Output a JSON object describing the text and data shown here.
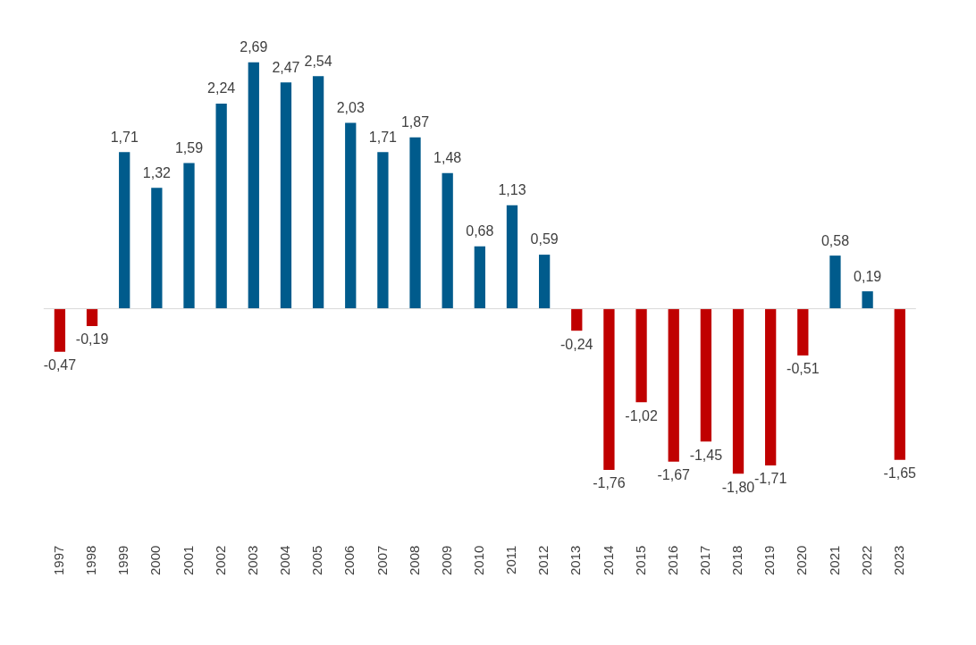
{
  "chart_data": {
    "type": "bar",
    "categories": [
      "1997",
      "1998",
      "1999",
      "2000",
      "2001",
      "2002",
      "2003",
      "2004",
      "2005",
      "2006",
      "2007",
      "2008",
      "2009",
      "2010",
      "2011",
      "2012",
      "2013",
      "2014",
      "2015",
      "2016",
      "2017",
      "2018",
      "2019",
      "2020",
      "2021",
      "2022",
      "2023"
    ],
    "values": [
      -0.47,
      -0.19,
      1.71,
      1.32,
      1.59,
      2.24,
      2.69,
      2.47,
      2.54,
      2.03,
      1.71,
      1.87,
      1.48,
      0.68,
      1.13,
      0.59,
      -0.24,
      -1.76,
      -1.02,
      -1.67,
      -1.45,
      -1.8,
      -1.71,
      -0.51,
      0.58,
      0.19,
      -1.65
    ],
    "value_labels": [
      "-0,47",
      "-0,19",
      "1,71",
      "1,32",
      "1,59",
      "2,24",
      "2,69",
      "2,47",
      "2,54",
      "2,03",
      "1,71",
      "1,87",
      "1,48",
      "0,68",
      "1,13",
      "0,59",
      "-0,24",
      "-1,76",
      "-1,02",
      "-1,67",
      "-1,45",
      "-1,80",
      "-1,71",
      "-0,51",
      "0,58",
      "0,19",
      "-1,65"
    ],
    "colors": [
      "#c00000",
      "#c00000",
      "#005b8c",
      "#005b8c",
      "#005b8c",
      "#005b8c",
      "#005b8c",
      "#005b8c",
      "#005b8c",
      "#005b8c",
      "#005b8c",
      "#005b8c",
      "#005b8c",
      "#005b8c",
      "#005b8c",
      "#005b8c",
      "#c00000",
      "#c00000",
      "#c00000",
      "#c00000",
      "#c00000",
      "#c00000",
      "#c00000",
      "#c00000",
      "#005b8c",
      "#005b8c",
      "#c00000"
    ],
    "grid": false,
    "legend": false
  }
}
